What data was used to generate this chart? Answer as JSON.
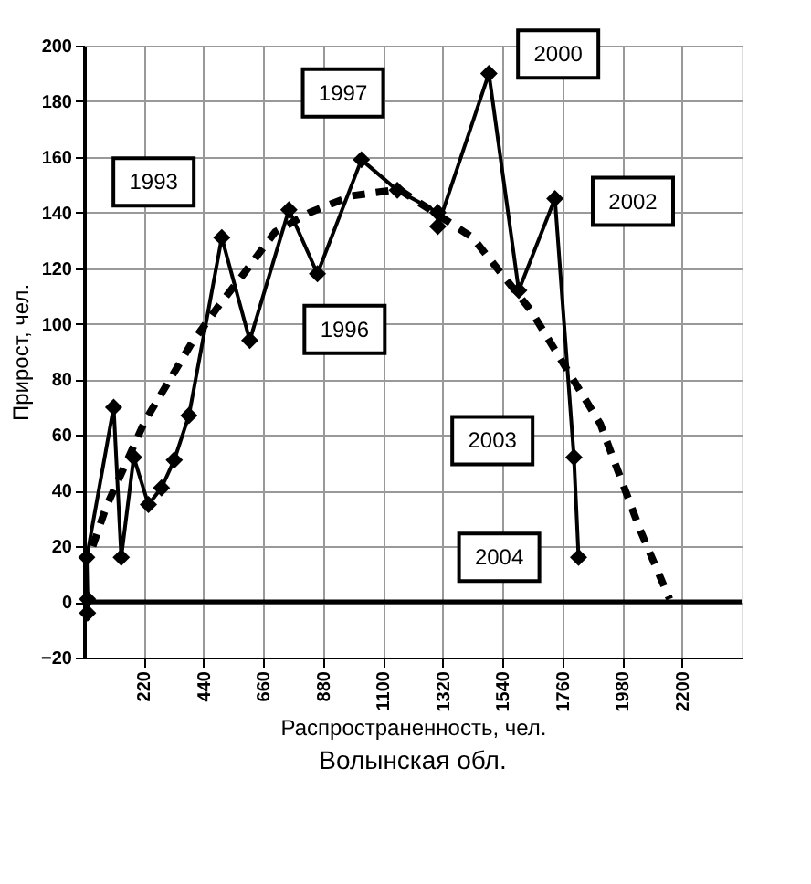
{
  "chart_data": {
    "type": "line",
    "title": "Волынская обл.",
    "xlabel": "Распространенность, чел.",
    "ylabel": "Прирост, чел.",
    "xlim": [
      0,
      2420
    ],
    "xticks": [
      220,
      440,
      660,
      880,
      1100,
      1320,
      1540,
      1760,
      1980,
      2200
    ],
    "ylim": [
      -20,
      200
    ],
    "yticks": [
      -20,
      0,
      20,
      40,
      60,
      80,
      100,
      120,
      140,
      160,
      180,
      200
    ],
    "grid": true,
    "series": [
      {
        "color": "#000000",
        "marker": "diamond",
        "line_style": "solid",
        "x": [
          13,
          13,
          10,
          109,
          137,
          183,
          237,
          285,
          332,
          386,
          507,
          610,
          754,
          859,
          1021,
          1153,
          1302,
          1302,
          1490,
          1600,
          1733,
          1803,
          1820
        ],
        "values": [
          -4,
          1,
          16,
          70,
          16,
          52,
          35,
          41,
          51,
          67,
          131,
          94,
          141,
          118,
          159,
          148,
          140,
          135,
          190,
          112,
          145,
          52,
          16
        ]
      },
      {
        "color": "#000000",
        "marker": "none",
        "line_style": "dashed",
        "x": [
          32,
          81,
          224,
          396,
          492,
          588,
          703,
          831,
          985,
          1132,
          1164,
          1430,
          1643,
          1900,
          2046,
          2155
        ],
        "values": [
          20,
          34,
          65,
          93,
          106,
          118,
          133,
          140,
          146,
          148,
          148,
          131,
          105,
          64,
          26,
          1
        ]
      }
    ],
    "ref_lines": [
      {
        "axis": "y",
        "value": 0,
        "color": "#000000"
      }
    ],
    "annotations": [
      {
        "text": "1993",
        "x": 256,
        "y": 151
      },
      {
        "text": "1997",
        "x": 953,
        "y": 183
      },
      {
        "text": "1996",
        "x": 959,
        "y": 98
      },
      {
        "text": "2000",
        "x": 1745,
        "y": 197
      },
      {
        "text": "2002",
        "x": 2020,
        "y": 144
      },
      {
        "text": "2003",
        "x": 1503,
        "y": 58
      },
      {
        "text": "2004",
        "x": 1528,
        "y": 16
      }
    ]
  }
}
